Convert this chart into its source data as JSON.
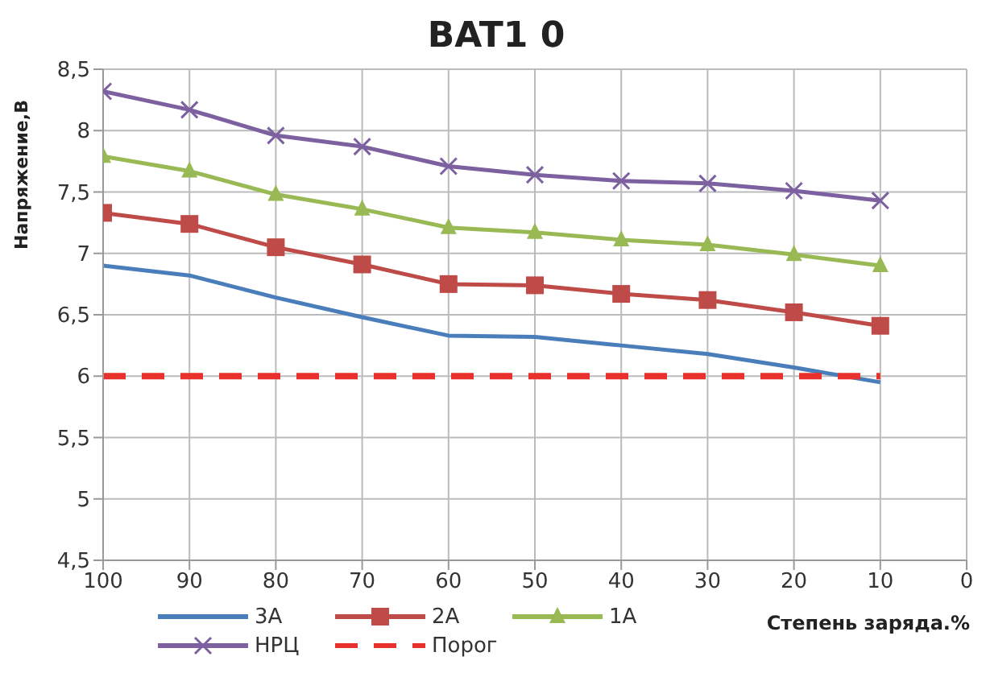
{
  "chart_data": {
    "type": "line",
    "title": "BAT1 0",
    "xlabel": "Степень заряда.%",
    "ylabel": "Напряжение,В",
    "x": [
      100,
      90,
      80,
      70,
      60,
      50,
      40,
      30,
      20,
      10
    ],
    "xlim": [
      100,
      0
    ],
    "xticks": [
      100,
      90,
      80,
      70,
      60,
      50,
      40,
      30,
      20,
      10,
      0
    ],
    "ylim": [
      4.5,
      8.5
    ],
    "yticks": [
      {
        "value": 4.5,
        "label": "4,5"
      },
      5,
      {
        "value": 5.5,
        "label": "5,5"
      },
      6,
      {
        "value": 6.5,
        "label": "6,5"
      },
      7,
      {
        "value": 7.5,
        "label": "7,5"
      },
      8,
      {
        "value": 8.5,
        "label": "8,5"
      }
    ],
    "grid": true,
    "legend": "bottom",
    "series": [
      {
        "name": "3A",
        "color": "#4a7ebb",
        "marker": "none",
        "values": [
          6.9,
          6.82,
          6.64,
          6.48,
          6.33,
          6.32,
          6.25,
          6.18,
          6.07,
          5.95
        ]
      },
      {
        "name": "2A",
        "color": "#be4b48",
        "marker": "square",
        "values": [
          7.33,
          7.24,
          7.05,
          6.91,
          6.75,
          6.74,
          6.67,
          6.62,
          6.52,
          6.41
        ]
      },
      {
        "name": "1A",
        "color": "#98b954",
        "marker": "triangle",
        "values": [
          7.79,
          7.67,
          7.48,
          7.36,
          7.21,
          7.17,
          7.11,
          7.07,
          6.99,
          6.9
        ]
      },
      {
        "name": "НРЦ",
        "color": "#7d60a0",
        "marker": "cross",
        "values": [
          8.32,
          8.17,
          7.96,
          7.87,
          7.71,
          7.64,
          7.59,
          7.57,
          7.51,
          7.43
        ]
      },
      {
        "name": "Порог",
        "color": "#e8312c",
        "marker": "none",
        "line_style": "dashed",
        "values": [
          6,
          6,
          6,
          6,
          6,
          6,
          6,
          6,
          6,
          6
        ]
      }
    ]
  }
}
